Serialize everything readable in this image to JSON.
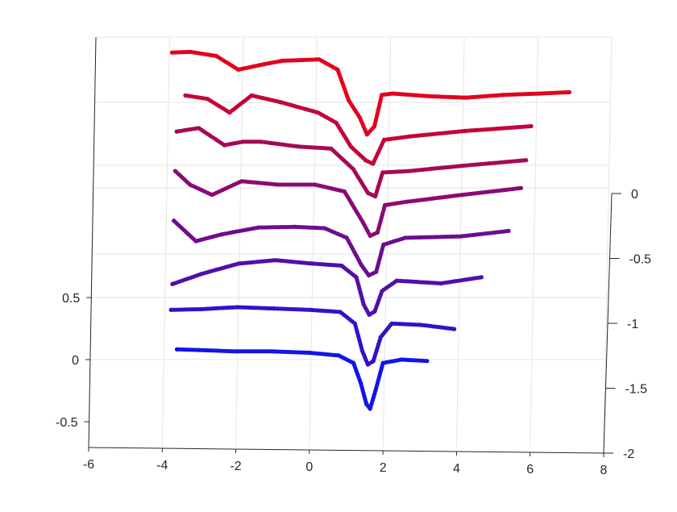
{
  "chart_data": {
    "type": "scatter",
    "title": "",
    "xlabel": "",
    "ylabel": "",
    "zlabel": "",
    "grid": true,
    "view": "3d",
    "axes": {
      "x": {
        "min": -6,
        "max": 8,
        "ticks": [
          -6,
          -4,
          -2,
          0,
          2,
          4,
          6,
          8
        ],
        "tick_labels": [
          "-6",
          "-4",
          "-2",
          "0",
          "2",
          "4",
          "6",
          "8"
        ]
      },
      "y": {
        "min": -2,
        "max": 0,
        "ticks": [
          -2,
          -1.5,
          -1,
          -0.5,
          0
        ],
        "tick_labels": [
          "-2",
          "-1.5",
          "-1",
          "-0.5",
          "0"
        ]
      },
      "z": {
        "min": -0.7,
        "max": 1.5,
        "ticks": [
          -0.5,
          0,
          0.5
        ],
        "tick_labels": [
          "-0.5",
          "0",
          "0.5"
        ]
      }
    },
    "color_map": {
      "start": "#1414e6",
      "end": "#ff0000"
    },
    "series": [
      {
        "y": -2.0,
        "x": [
          -3.6,
          -3.0,
          -2.0,
          -1.0,
          0.0,
          0.8,
          1.2,
          1.4,
          1.55,
          1.65,
          1.8,
          2.0,
          2.5,
          3.2
        ],
        "z": [
          0.15,
          0.14,
          0.12,
          0.12,
          0.1,
          0.06,
          -0.05,
          -0.35,
          -0.65,
          -0.72,
          -0.45,
          -0.05,
          0.0,
          -0.02
        ]
      },
      {
        "y": -1.75,
        "x": [
          -3.8,
          -3.0,
          -2.0,
          -1.0,
          0.0,
          0.8,
          1.2,
          1.4,
          1.55,
          1.7,
          1.9,
          2.2,
          3.0,
          3.9
        ],
        "z": [
          0.3,
          0.31,
          0.34,
          0.32,
          0.3,
          0.27,
          0.1,
          -0.3,
          -0.5,
          -0.45,
          -0.1,
          0.1,
          0.08,
          0.02
        ]
      },
      {
        "y": -1.5,
        "x": [
          -3.8,
          -3.0,
          -2.0,
          -1.0,
          0.0,
          0.8,
          1.2,
          1.4,
          1.55,
          1.7,
          1.9,
          2.3,
          3.5,
          4.6
        ],
        "z": [
          0.25,
          0.4,
          0.55,
          0.6,
          0.55,
          0.52,
          0.35,
          -0.05,
          -0.2,
          -0.15,
          0.15,
          0.3,
          0.26,
          0.35
        ]
      },
      {
        "y": -1.25,
        "x": [
          -3.8,
          -3.2,
          -2.5,
          -1.5,
          -0.5,
          0.3,
          0.9,
          1.3,
          1.5,
          1.7,
          1.9,
          2.5,
          4.0,
          5.3
        ],
        "z": [
          0.75,
          0.45,
          0.55,
          0.65,
          0.66,
          0.64,
          0.5,
          0.1,
          -0.05,
          0.0,
          0.4,
          0.5,
          0.52,
          0.6
        ]
      },
      {
        "y": -1.0,
        "x": [
          -3.8,
          -3.4,
          -2.8,
          -2.0,
          -1.0,
          0.0,
          0.8,
          1.3,
          1.5,
          1.7,
          1.9,
          2.5,
          4.0,
          5.6
        ],
        "z": [
          1.05,
          0.85,
          0.7,
          0.9,
          0.85,
          0.85,
          0.75,
          0.3,
          0.1,
          0.15,
          0.55,
          0.6,
          0.7,
          0.8
        ]
      },
      {
        "y": -0.75,
        "x": [
          -3.8,
          -3.2,
          -2.5,
          -2.0,
          -1.5,
          -0.5,
          0.4,
          1.0,
          1.4,
          1.6,
          1.8,
          2.5,
          4.0,
          5.7
        ],
        "z": [
          1.2,
          1.25,
          1.0,
          1.05,
          1.05,
          0.98,
          0.95,
          0.65,
          0.3,
          0.25,
          0.6,
          0.62,
          0.7,
          0.78
        ]
      },
      {
        "y": -0.5,
        "x": [
          -3.6,
          -3.0,
          -2.4,
          -1.8,
          -1.0,
          0.0,
          0.5,
          0.9,
          1.3,
          1.5,
          1.8,
          2.5,
          4.0,
          5.8
        ],
        "z": [
          1.3,
          1.25,
          1.05,
          1.3,
          1.2,
          1.05,
          0.9,
          0.55,
          0.35,
          0.3,
          0.65,
          0.7,
          0.78,
          0.85
        ]
      },
      {
        "y": -0.25,
        "x": [
          -4.0,
          -3.5,
          -2.8,
          -2.2,
          -1.5,
          -1.0,
          0.0,
          0.5,
          0.8,
          1.1,
          1.3,
          1.5,
          1.7,
          2.0,
          3.0,
          4.0,
          5.0,
          6.0,
          6.8
        ],
        "z": [
          1.5,
          1.51,
          1.45,
          1.25,
          1.33,
          1.38,
          1.4,
          1.25,
          0.8,
          0.55,
          0.3,
          0.42,
          0.88,
          0.9,
          0.86,
          0.84,
          0.88,
          0.9,
          0.92
        ]
      }
    ]
  }
}
